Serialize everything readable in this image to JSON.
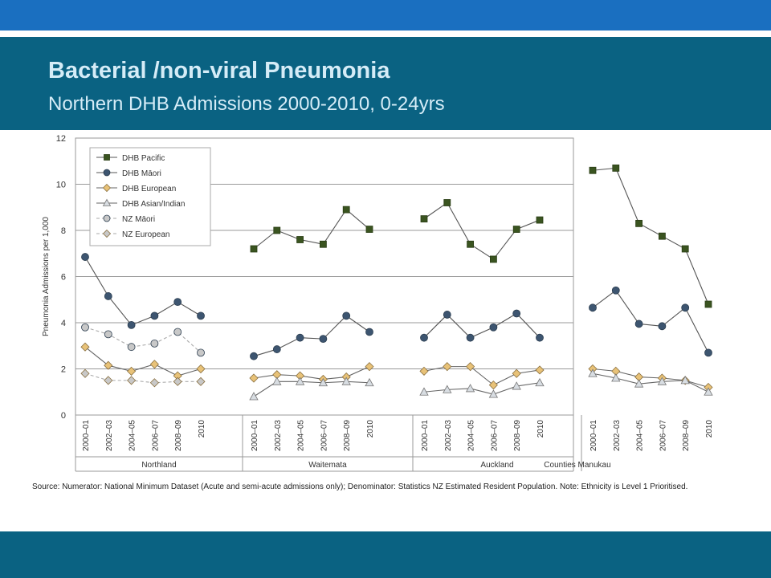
{
  "slide": {
    "title": "Bacterial /non-viral Pneumonia",
    "subtitle": "Northern DHB Admissions 2000-2010, 0-24yrs",
    "source_note": "Source: Numerator: National Minimum Dataset (Acute and semi-acute admissions only); Denominator: Statistics NZ Estimated Resident Population. Note: Ethnicity is Level 1 Prioritised."
  },
  "colors": {
    "top_bar": "#1a6fc0",
    "header": "#0a6282",
    "title_text": "#d5ecf7"
  },
  "chart_data": {
    "type": "line",
    "ylabel": "Pneumonia Admissions per 1,000",
    "ylim": [
      0,
      12
    ],
    "yticks": [
      0,
      2,
      4,
      6,
      8,
      10,
      12
    ],
    "grid": true,
    "legend_position": "top-left",
    "groups": [
      {
        "name": "Northland",
        "categories": [
          "2000–01",
          "2002–03",
          "2004–05",
          "2006–07",
          "2008–09",
          "2010"
        ]
      },
      {
        "name": "Waitemata",
        "categories": [
          "2000–01",
          "2002–03",
          "2004–05",
          "2006–07",
          "2008–09",
          "2010"
        ]
      },
      {
        "name": "Auckland",
        "categories": [
          "2000–01",
          "2002–03",
          "2004–05",
          "2006–07",
          "2008–09",
          "2010"
        ]
      },
      {
        "name": "Counties Manukau",
        "categories": [
          "2000–01",
          "2002–03",
          "2004–05",
          "2006–07",
          "2008–09",
          "2010"
        ]
      }
    ],
    "series": [
      {
        "name": "DHB Pacific",
        "marker": "square",
        "color": "#3a5420",
        "line": "#555555",
        "dash": false,
        "groups": [
          null,
          [
            7.2,
            8.0,
            7.6,
            7.4,
            8.9,
            8.05
          ],
          [
            8.5,
            9.2,
            7.4,
            6.75,
            8.05,
            8.45
          ],
          [
            10.6,
            10.7,
            8.3,
            7.75,
            7.2,
            4.8
          ]
        ]
      },
      {
        "name": "DHB Māori",
        "marker": "circle",
        "color": "#3d5570",
        "line": "#555555",
        "dash": false,
        "groups": [
          [
            6.85,
            5.15,
            3.9,
            4.3,
            4.9,
            4.3
          ],
          [
            2.55,
            2.85,
            3.35,
            3.3,
            4.3,
            3.6
          ],
          [
            3.35,
            4.35,
            3.35,
            3.8,
            4.4,
            3.35
          ],
          [
            4.65,
            5.4,
            3.95,
            3.85,
            4.65,
            2.7
          ]
        ]
      },
      {
        "name": "DHB European",
        "marker": "diamond",
        "color": "#e8c278",
        "line": "#666666",
        "dash": false,
        "groups": [
          [
            2.95,
            2.15,
            1.9,
            2.2,
            1.7,
            2.0
          ],
          [
            1.6,
            1.75,
            1.7,
            1.55,
            1.65,
            2.1
          ],
          [
            1.9,
            2.1,
            2.1,
            1.3,
            1.8,
            1.95
          ],
          [
            2.0,
            1.9,
            1.65,
            1.6,
            1.5,
            1.2
          ]
        ]
      },
      {
        "name": "DHB Asian/Indian",
        "marker": "triangle",
        "color": "#d8dde2",
        "line": "#666666",
        "dash": false,
        "groups": [
          null,
          [
            0.8,
            1.45,
            1.45,
            1.4,
            1.45,
            1.4
          ],
          [
            1.0,
            1.1,
            1.15,
            0.9,
            1.25,
            1.4
          ],
          [
            1.8,
            1.6,
            1.35,
            1.45,
            1.5,
            1.0
          ]
        ]
      },
      {
        "name": "NZ Māori",
        "marker": "circle",
        "color": "#c8c8c8",
        "line": "#aaaaaa",
        "dash": true,
        "groups": [
          [
            3.8,
            3.5,
            2.95,
            3.1,
            3.6,
            2.7
          ],
          null,
          null,
          null
        ]
      },
      {
        "name": "NZ European",
        "marker": "diamond",
        "color": "#c8c8c8",
        "line": "#aaaaaa",
        "dash": true,
        "groups": [
          [
            1.8,
            1.5,
            1.5,
            1.4,
            1.45,
            1.45
          ],
          null,
          null,
          null
        ]
      }
    ]
  }
}
